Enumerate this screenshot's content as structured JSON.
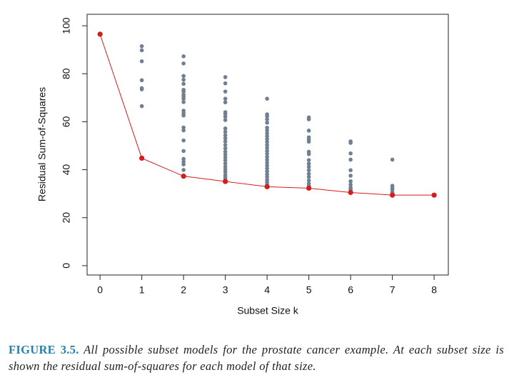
{
  "chart_data": {
    "type": "scatter",
    "xlabel": "Subset Size k",
    "ylabel": "Residual Sum-of-Squares",
    "xlim": [
      -0.31,
      8.34
    ],
    "ylim": [
      -3.9,
      104.8
    ],
    "xticks": [
      0,
      1,
      2,
      3,
      4,
      5,
      6,
      7,
      8
    ],
    "yticks": [
      0,
      20,
      40,
      60,
      80,
      100
    ],
    "series": [
      {
        "color": "#708090",
        "x": [
          1,
          1,
          1,
          1,
          1,
          1,
          1,
          2,
          2,
          2,
          2,
          2,
          2,
          2,
          2,
          2,
          2,
          2,
          2,
          2,
          2,
          2,
          2,
          2,
          2,
          2,
          2,
          2,
          2,
          3,
          3,
          3,
          3,
          3,
          3,
          3,
          3,
          3,
          3,
          3,
          3,
          3,
          3,
          3,
          3,
          3,
          3,
          3,
          3,
          3,
          3,
          3,
          3,
          3,
          3,
          3,
          4,
          4,
          4,
          4,
          4,
          4,
          4,
          4,
          4,
          4,
          4,
          4,
          4,
          4,
          4,
          4,
          4,
          4,
          4,
          4,
          4,
          4,
          4,
          4,
          4,
          4,
          5,
          5,
          5,
          5,
          5,
          5,
          5,
          5,
          5,
          5,
          5,
          5,
          5,
          5,
          5,
          5,
          5,
          6,
          6,
          6,
          6,
          6,
          6,
          6,
          6,
          6,
          6,
          6,
          7,
          7,
          7,
          7,
          7,
          7
        ],
        "values": [
          91.5,
          89.8,
          85.2,
          77.3,
          74.0,
          73.5,
          66.5,
          87.3,
          84.3,
          79.1,
          77.5,
          75.8,
          73.3,
          72.6,
          71.3,
          70.5,
          69.6,
          68.2,
          64.6,
          63.5,
          62.6,
          57.6,
          56.4,
          52.2,
          47.8,
          44.5,
          43.3,
          42.2,
          39.9,
          78.6,
          76.0,
          72.6,
          69.6,
          68.1,
          64.0,
          63.2,
          62.1,
          60.7,
          57.2,
          55.8,
          54.4,
          53.1,
          51.8,
          50.3,
          48.9,
          47.5,
          46.3,
          45.1,
          43.9,
          42.6,
          41.3,
          40.2,
          39.1,
          37.8,
          36.9,
          36.1,
          69.6,
          63.1,
          62.3,
          61.0,
          59.6,
          57.5,
          56.4,
          55.2,
          54.0,
          52.8,
          51.6,
          50.3,
          49.1,
          47.8,
          46.6,
          45.3,
          44.1,
          42.9,
          41.7,
          40.5,
          39.3,
          38.1,
          37.0,
          35.8,
          34.8,
          33.9,
          61.8,
          61.0,
          56.3,
          53.5,
          52.5,
          51.7,
          47.5,
          46.5,
          44.0,
          42.5,
          41.2,
          39.8,
          38.3,
          37.0,
          35.5,
          34.2,
          33.3,
          51.8,
          51.2,
          46.8,
          44.2,
          39.8,
          37.5,
          35.2,
          33.8,
          32.6,
          31.9,
          31.3,
          44.2,
          33.3,
          32.5,
          31.7,
          30.7,
          30.1
        ]
      },
      {
        "color": "#d41c1c",
        "line": true,
        "x": [
          0,
          1,
          2,
          3,
          4,
          5,
          6,
          7,
          8
        ],
        "values": [
          96.5,
          44.8,
          37.3,
          35.1,
          32.9,
          32.3,
          30.5,
          29.4,
          29.4
        ]
      }
    ]
  },
  "caption": {
    "label": "FIGURE 3.5.",
    "text": "All possible subset models for the prostate cancer example. At each subset size is shown the residual sum-of-squares for each model of that size."
  }
}
